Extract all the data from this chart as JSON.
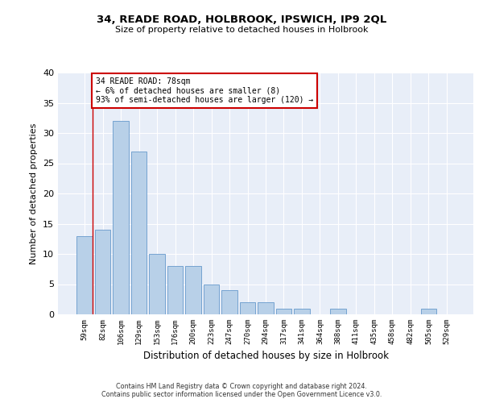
{
  "title": "34, READE ROAD, HOLBROOK, IPSWICH, IP9 2QL",
  "subtitle": "Size of property relative to detached houses in Holbrook",
  "xlabel": "Distribution of detached houses by size in Holbrook",
  "ylabel": "Number of detached properties",
  "categories": [
    "59sqm",
    "82sqm",
    "106sqm",
    "129sqm",
    "153sqm",
    "176sqm",
    "200sqm",
    "223sqm",
    "247sqm",
    "270sqm",
    "294sqm",
    "317sqm",
    "341sqm",
    "364sqm",
    "388sqm",
    "411sqm",
    "435sqm",
    "458sqm",
    "482sqm",
    "505sqm",
    "529sqm"
  ],
  "values": [
    13,
    14,
    32,
    27,
    10,
    8,
    8,
    5,
    4,
    2,
    2,
    1,
    1,
    0,
    1,
    0,
    0,
    0,
    0,
    1,
    0
  ],
  "bar_color": "#b8d0e8",
  "bar_edge_color": "#6699cc",
  "background_color": "#e8eef8",
  "grid_color": "#ffffff",
  "annotation_text": "34 READE ROAD: 78sqm\n← 6% of detached houses are smaller (8)\n93% of semi-detached houses are larger (120) →",
  "annotation_box_color": "#ffffff",
  "annotation_box_edge": "#cc0000",
  "red_line_x": 0.45,
  "ylim": [
    0,
    40
  ],
  "yticks": [
    0,
    5,
    10,
    15,
    20,
    25,
    30,
    35,
    40
  ],
  "footer_line1": "Contains HM Land Registry data © Crown copyright and database right 2024.",
  "footer_line2": "Contains public sector information licensed under the Open Government Licence v3.0."
}
